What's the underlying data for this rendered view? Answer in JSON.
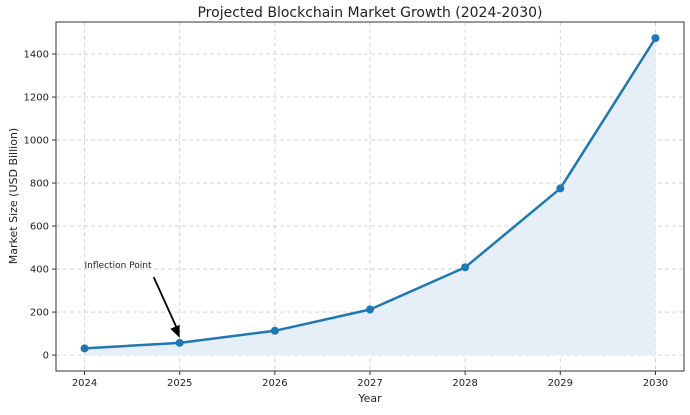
{
  "chart_data": {
    "type": "line",
    "title": "Projected Blockchain Market Growth (2024-2030)",
    "xlabel": "Year",
    "ylabel": "Market Size (USD Billion)",
    "x": [
      2024,
      2025,
      2026,
      2027,
      2028,
      2029,
      2030
    ],
    "series": [
      {
        "values": [
          31,
          57,
          113,
          212,
          408,
          775,
          1474
        ],
        "color": "#1f77b4",
        "fill": "#e6eff8",
        "marker": "circle"
      }
    ],
    "xlim": [
      2023.7,
      2030.3
    ],
    "ylim": [
      -74,
      1549
    ],
    "xticks": [
      2024,
      2025,
      2026,
      2027,
      2028,
      2029,
      2030
    ],
    "yticks": [
      0,
      200,
      400,
      600,
      800,
      1000,
      1200,
      1400
    ],
    "grid": true,
    "annotation": {
      "text": "Inflection Point",
      "x": 2025,
      "y": 57,
      "text_x": 2024,
      "text_y": 400
    }
  }
}
